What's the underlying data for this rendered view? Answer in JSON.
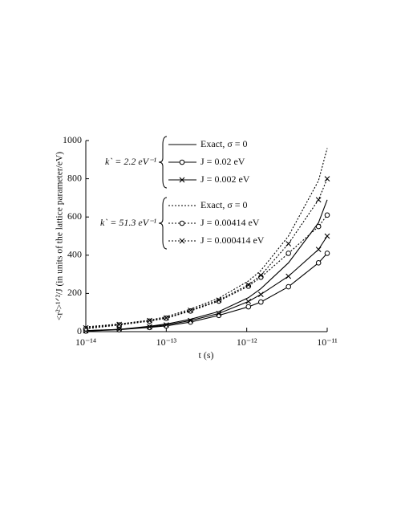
{
  "chart_data": {
    "type": "line",
    "xlabel": "t (s)",
    "ylabel": "<r²>¹ᐟ²/J (in units of the lattice parameter/eV)",
    "xscale": "log",
    "xlim": [
      1e-14,
      1e-11
    ],
    "xticks": [
      {
        "value": 1e-14,
        "label": "10⁻¹⁴"
      },
      {
        "value": 1e-13,
        "label": "10⁻¹³"
      },
      {
        "value": 1e-12,
        "label": "10⁻¹²"
      },
      {
        "value": 1e-11,
        "label": "10⁻¹¹"
      }
    ],
    "ylim": [
      0,
      1000
    ],
    "yticks": [
      0,
      200,
      400,
      600,
      800,
      1000
    ],
    "x": [
      1e-14,
      2.6e-14,
      6.2e-14,
      1e-13,
      2e-13,
      4.5e-13,
      1.05e-12,
      1.5e-12,
      3.3e-12,
      7.8e-12,
      1e-11
    ],
    "groups": [
      {
        "label": "k` = 2.2 eV⁻¹",
        "series": [
          {
            "name": "Exact, σ = 0",
            "color": "#000000",
            "dash": "solid",
            "marker": "none",
            "values": [
              5,
              12,
              28,
              40,
              65,
              105,
              178,
              225,
              360,
              570,
              690
            ]
          },
          {
            "name": "J = 0.02 eV",
            "color": "#000000",
            "dash": "solid",
            "marker": "circle",
            "values": [
              3,
              10,
              22,
              30,
              50,
              85,
              130,
              155,
              235,
              360,
              410
            ]
          },
          {
            "name": "J = 0.002 eV",
            "color": "#000000",
            "dash": "solid",
            "marker": "cross",
            "values": [
              5,
              12,
              25,
              35,
              58,
              95,
              158,
              195,
              290,
              430,
              500
            ]
          }
        ]
      },
      {
        "label": "k` = 51.3 eV⁻¹",
        "series": [
          {
            "name": "Exact, σ = 0",
            "color": "#000000",
            "dash": "dotted",
            "marker": "none",
            "values": [
              25,
              40,
              60,
              78,
              118,
              175,
              265,
              320,
              500,
              790,
              960
            ]
          },
          {
            "name": "J = 0.00414 eV",
            "color": "#000000",
            "dash": "dotted",
            "marker": "circle",
            "values": [
              15,
              35,
              55,
              70,
              108,
              160,
              238,
              285,
              410,
              550,
              610
            ]
          },
          {
            "name": "J = 0.000414 eV",
            "color": "#000000",
            "dash": "dotted",
            "marker": "cross",
            "values": [
              20,
              38,
              58,
              72,
              112,
              165,
              245,
              295,
              460,
              690,
              800
            ]
          }
        ]
      }
    ]
  }
}
